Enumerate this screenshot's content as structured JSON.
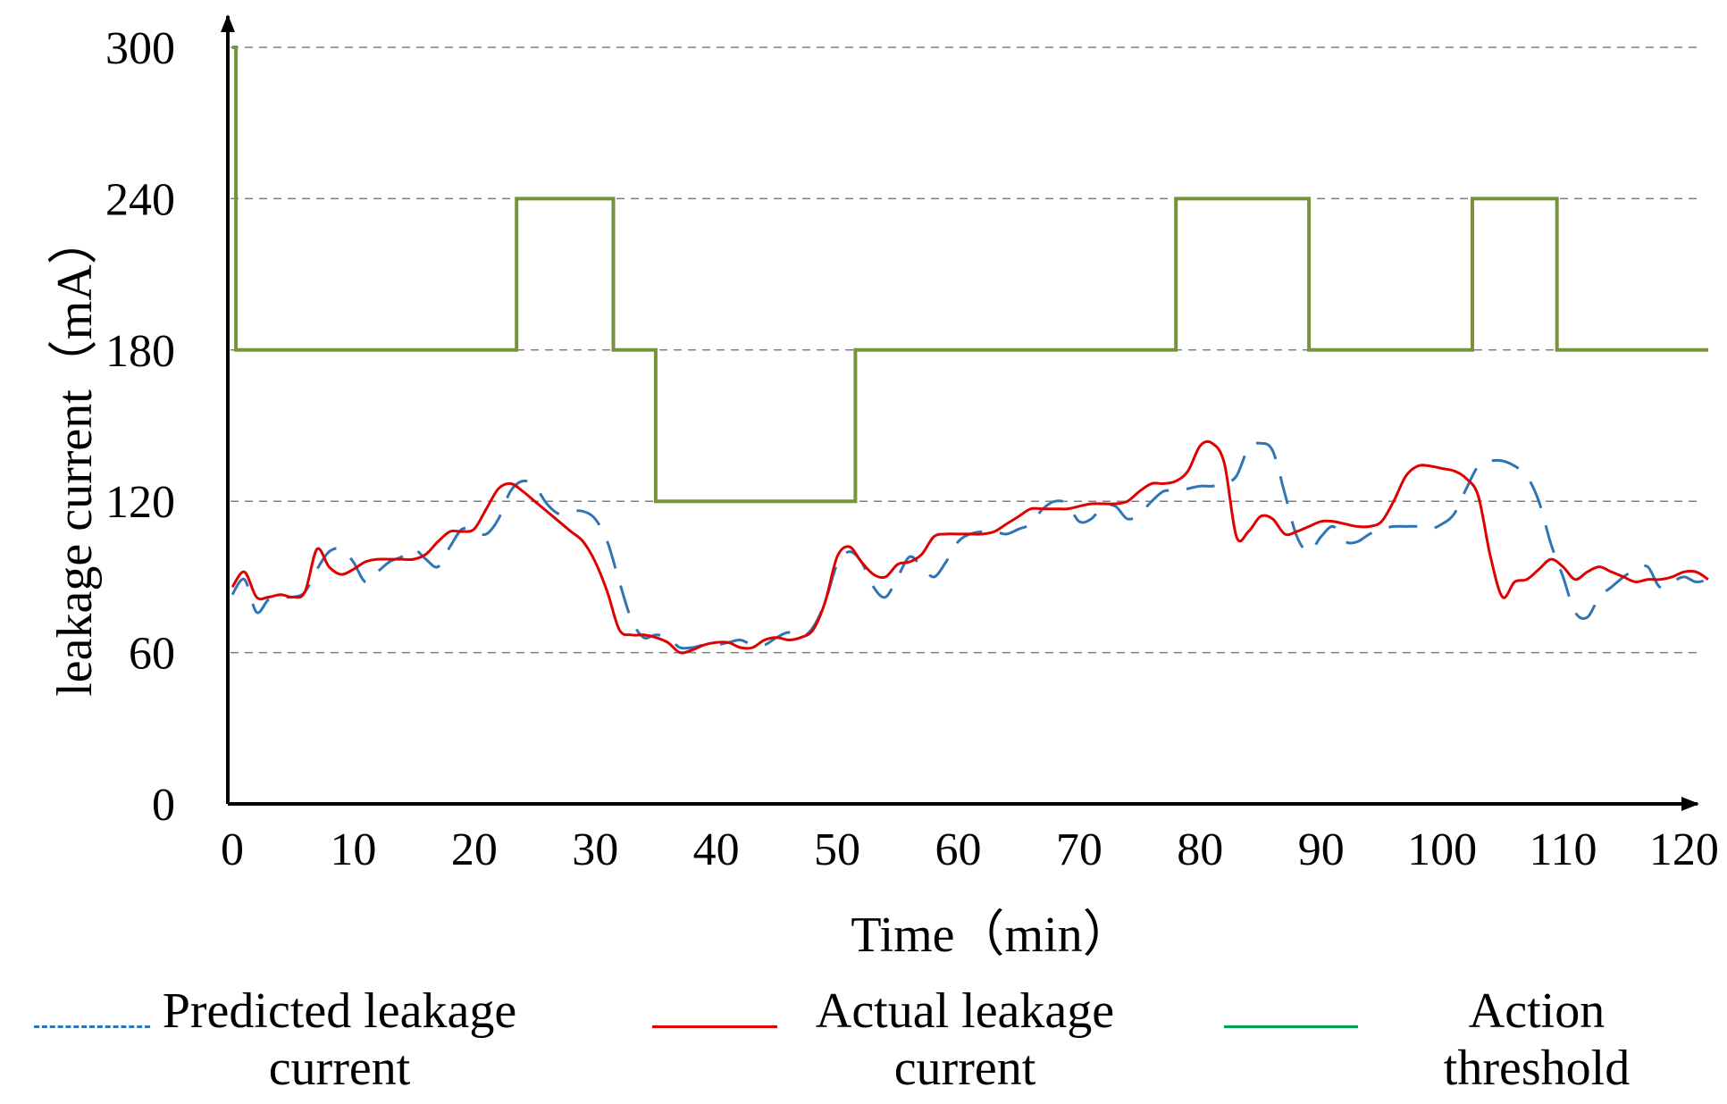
{
  "chart_data": {
    "type": "line",
    "title": "",
    "xlabel": "Time（min）",
    "ylabel": "leakage current（mA）",
    "xlim": [
      0,
      122
    ],
    "ylim": [
      0,
      300
    ],
    "xticks": [
      0,
      10,
      20,
      30,
      40,
      50,
      60,
      70,
      80,
      90,
      100,
      110,
      120
    ],
    "yticks": [
      0,
      60,
      120,
      180,
      240,
      300
    ],
    "xtick_labels": [
      "0",
      "10",
      "20",
      "30",
      "40",
      "50",
      "60",
      "70",
      "80",
      "90",
      "100",
      "110",
      "120"
    ],
    "ytick_labels": [
      "0",
      "60",
      "120",
      "180",
      "240",
      "300"
    ],
    "grid": "horizontal-dashed",
    "legend_position": "bottom",
    "series": [
      {
        "name": "Predicted leakage current",
        "legend_label_lines": [
          "Predicted leakage",
          "current"
        ],
        "color": "#2E75B6",
        "style": "dashed",
        "x": [
          0,
          1,
          2,
          3,
          4,
          5,
          6,
          7,
          8,
          9,
          10,
          11,
          12,
          13,
          14,
          15,
          16,
          17,
          18,
          19,
          20,
          21,
          22,
          23,
          24,
          25,
          26,
          27,
          28,
          29,
          30,
          31,
          32,
          33,
          34,
          35,
          36,
          37,
          38,
          39,
          40,
          41,
          42,
          43,
          44,
          45,
          46,
          47,
          48,
          49,
          50,
          51,
          52,
          53,
          54,
          55,
          56,
          57,
          58,
          59,
          60,
          61,
          62,
          63,
          64,
          65,
          66,
          67,
          68,
          69,
          70,
          71,
          72,
          73,
          74,
          75,
          76,
          77,
          78,
          79,
          80,
          81,
          82,
          83,
          84,
          85,
          86,
          87,
          88,
          89,
          90,
          91,
          92,
          93,
          94,
          95,
          96,
          97,
          98,
          99,
          100,
          101,
          102,
          103,
          104,
          105,
          106,
          107,
          108,
          109,
          110,
          111,
          112,
          113,
          114,
          115,
          116,
          117,
          118,
          119,
          120,
          121,
          122
        ],
        "y": [
          83,
          89,
          76,
          81,
          82,
          82,
          84,
          93,
          100,
          101,
          96,
          88,
          92,
          96,
          98,
          101,
          97,
          94,
          102,
          109,
          108,
          107,
          113,
          124,
          128,
          126,
          119,
          115,
          116,
          116,
          113,
          104,
          88,
          73,
          66,
          67,
          66,
          62,
          62,
          63,
          63,
          64,
          65,
          63,
          63,
          66,
          68,
          66,
          70,
          80,
          95,
          100,
          96,
          86,
          82,
          90,
          98,
          94,
          90,
          96,
          104,
          107,
          108,
          108,
          107,
          109,
          111,
          117,
          120,
          119,
          112,
          113,
          118,
          118,
          113,
          115,
          120,
          124,
          124,
          125,
          126,
          126,
          127,
          130,
          141,
          143,
          140,
          123,
          106,
          100,
          106,
          110,
          104,
          104,
          107,
          109,
          110,
          110,
          110,
          109,
          111,
          115,
          125,
          134,
          136,
          136,
          134,
          130,
          120,
          103,
          90,
          76,
          74,
          82,
          86,
          90,
          93,
          94,
          86,
          88,
          90,
          88,
          89
        ]
      },
      {
        "name": "Actual leakage current",
        "legend_label_lines": [
          "Actual leakage",
          "current"
        ],
        "color": "#E00000",
        "style": "solid",
        "x": [
          0,
          1,
          2,
          3,
          4,
          5,
          6,
          7,
          8,
          9,
          10,
          11,
          12,
          13,
          14,
          15,
          16,
          17,
          18,
          19,
          20,
          21,
          22,
          23,
          24,
          25,
          26,
          27,
          28,
          29,
          30,
          31,
          32,
          33,
          34,
          35,
          36,
          37,
          38,
          39,
          40,
          41,
          42,
          43,
          44,
          45,
          46,
          47,
          48,
          49,
          50,
          51,
          52,
          53,
          54,
          55,
          56,
          57,
          58,
          59,
          60,
          61,
          62,
          63,
          64,
          65,
          66,
          67,
          68,
          69,
          70,
          71,
          72,
          73,
          74,
          75,
          76,
          77,
          78,
          79,
          80,
          81,
          82,
          83,
          84,
          85,
          86,
          87,
          88,
          89,
          90,
          91,
          92,
          93,
          94,
          95,
          96,
          97,
          98,
          99,
          100,
          101,
          102,
          103,
          104,
          105,
          106,
          107,
          108,
          109,
          110,
          111,
          112,
          113,
          114,
          115,
          116,
          117,
          118,
          119,
          120,
          121,
          122
        ],
        "y": [
          86,
          92,
          82,
          82,
          83,
          82,
          84,
          101,
          94,
          91,
          93,
          96,
          97,
          97,
          97,
          97,
          99,
          104,
          108,
          108,
          109,
          117,
          125,
          127,
          124,
          120,
          116,
          112,
          108,
          104,
          96,
          84,
          69,
          67,
          67,
          66,
          64,
          60,
          61,
          63,
          64,
          64,
          62,
          62,
          65,
          66,
          65,
          66,
          69,
          80,
          98,
          102,
          96,
          91,
          90,
          95,
          96,
          99,
          106,
          107,
          107,
          107,
          107,
          108,
          111,
          114,
          117,
          117,
          117,
          117,
          118,
          119,
          119,
          119,
          120,
          124,
          127,
          127,
          128,
          132,
          142,
          143,
          135,
          106,
          108,
          114,
          113,
          107,
          108,
          110,
          112,
          112,
          111,
          110,
          110,
          112,
          120,
          130,
          134,
          134,
          133,
          132,
          129,
          122,
          98,
          82,
          88,
          89,
          93,
          97,
          94,
          89,
          92,
          94,
          92,
          90,
          88,
          89,
          89,
          90,
          92,
          92,
          89
        ]
      },
      {
        "name": "Action threshold",
        "legend_label_lines": [
          "Action",
          "threshold"
        ],
        "color": "#77933C",
        "legend_color": "#00A050",
        "style": "step",
        "x": [
          0,
          0.3,
          0.3,
          23.5,
          23.5,
          31.5,
          31.5,
          35,
          35,
          51.5,
          51.5,
          78,
          78,
          89,
          89,
          102.5,
          102.5,
          109.5,
          109.5,
          122
        ],
        "y": [
          300,
          300,
          180,
          180,
          240,
          240,
          180,
          180,
          120,
          120,
          180,
          180,
          240,
          240,
          180,
          180,
          240,
          240,
          180,
          180
        ]
      }
    ]
  }
}
